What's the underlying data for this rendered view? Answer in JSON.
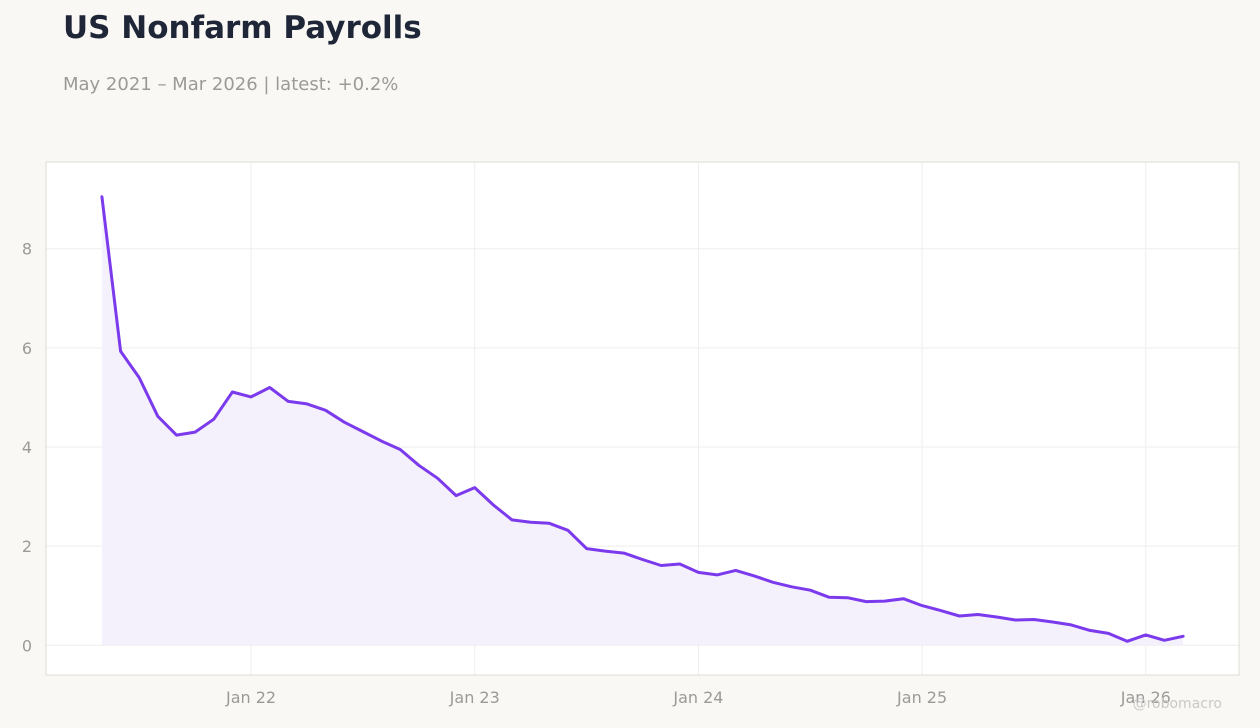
{
  "header": {
    "title": "US Nonfarm Payrolls",
    "subtitle": "May 2021 – Mar 2026 | latest: +0.2%"
  },
  "watermark": "@robomacro",
  "colors": {
    "line": "#7c3aed",
    "fill": "#f2eefc",
    "grid": "#eeeeee",
    "frame": "#dcdcd6",
    "background": "#f9f8f5",
    "plot_background": "#ffffff"
  },
  "chart_data": {
    "type": "area",
    "title": "US Nonfarm Payrolls",
    "xlabel": "",
    "ylabel": "",
    "grid": true,
    "legend": "none",
    "xlim": [
      "2021-02-01",
      "2026-06-01"
    ],
    "ylim": [
      -0.6,
      9.75
    ],
    "x_ticks": [
      {
        "date": "2022-01-01",
        "label": "Jan 22"
      },
      {
        "date": "2023-01-01",
        "label": "Jan 23"
      },
      {
        "date": "2024-01-01",
        "label": "Jan 24"
      },
      {
        "date": "2025-01-01",
        "label": "Jan 25"
      },
      {
        "date": "2026-01-01",
        "label": "Jan 26"
      }
    ],
    "y_ticks": [
      0,
      2,
      4,
      6,
      8
    ],
    "series": [
      {
        "x": [
          "2021-05",
          "2021-06",
          "2021-07",
          "2021-08",
          "2021-09",
          "2021-10",
          "2021-11",
          "2021-12",
          "2022-01",
          "2022-02",
          "2022-03",
          "2022-04",
          "2022-05",
          "2022-06",
          "2022-07",
          "2022-08",
          "2022-09",
          "2022-10",
          "2022-11",
          "2022-12",
          "2023-01",
          "2023-02",
          "2023-03",
          "2023-04",
          "2023-05",
          "2023-06",
          "2023-07",
          "2023-08",
          "2023-09",
          "2023-10",
          "2023-11",
          "2023-12",
          "2024-01",
          "2024-02",
          "2024-03",
          "2024-04",
          "2024-05",
          "2024-06",
          "2024-07",
          "2024-08",
          "2024-09",
          "2024-10",
          "2024-11",
          "2024-12",
          "2025-01",
          "2025-02",
          "2025-03",
          "2025-04",
          "2025-05",
          "2025-06",
          "2025-07",
          "2025-08",
          "2025-09",
          "2025-10",
          "2025-11",
          "2025-12",
          "2026-01",
          "2026-02",
          "2026-03"
        ],
        "values": [
          9.05,
          5.93,
          5.4,
          4.62,
          4.24,
          4.3,
          4.56,
          5.11,
          5.01,
          5.2,
          4.92,
          4.87,
          4.74,
          4.5,
          4.31,
          4.12,
          3.95,
          3.63,
          3.37,
          3.02,
          3.18,
          2.83,
          2.53,
          2.48,
          2.46,
          2.32,
          1.95,
          1.9,
          1.86,
          1.73,
          1.61,
          1.64,
          1.47,
          1.42,
          1.51,
          1.4,
          1.27,
          1.18,
          1.11,
          0.97,
          0.96,
          0.88,
          0.89,
          0.94,
          0.8,
          0.7,
          0.59,
          0.62,
          0.57,
          0.51,
          0.52,
          0.47,
          0.41,
          0.3,
          0.24,
          0.08,
          0.21,
          0.1,
          0.18
        ]
      }
    ]
  }
}
